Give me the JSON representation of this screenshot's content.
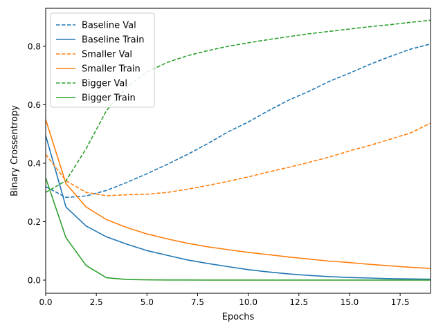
{
  "chart_data": {
    "type": "line",
    "xlabel": "Epochs",
    "ylabel": "Binary Crossentropy",
    "xlim": [
      0,
      19
    ],
    "ylim": [
      -0.045,
      0.93
    ],
    "xticks": [
      0,
      2.5,
      5,
      7.5,
      10,
      12.5,
      15,
      17.5
    ],
    "xtick_labels": [
      "0.0",
      "2.5",
      "5.0",
      "7.5",
      "10.0",
      "12.5",
      "15.0",
      "17.5"
    ],
    "yticks": [
      0,
      0.2,
      0.4,
      0.6,
      0.8
    ],
    "ytick_labels": [
      "0.0",
      "0.2",
      "0.4",
      "0.6",
      "0.8"
    ],
    "legend_position": "top-left",
    "grid": false,
    "x": [
      0,
      1,
      2,
      3,
      4,
      5,
      6,
      7,
      8,
      9,
      10,
      11,
      12,
      13,
      14,
      15,
      16,
      17,
      18,
      19
    ],
    "series": [
      {
        "name": "Baseline Val",
        "color": "#1f77b4",
        "style": "dashed",
        "values": [
          0.32,
          0.283,
          0.288,
          0.307,
          0.334,
          0.364,
          0.396,
          0.43,
          0.467,
          0.507,
          0.541,
          0.58,
          0.616,
          0.646,
          0.68,
          0.708,
          0.738,
          0.765,
          0.79,
          0.808
        ]
      },
      {
        "name": "Baseline Train",
        "color": "#1f77b4",
        "style": "solid",
        "values": [
          0.495,
          0.25,
          0.185,
          0.148,
          0.123,
          0.101,
          0.085,
          0.069,
          0.057,
          0.046,
          0.036,
          0.028,
          0.021,
          0.016,
          0.012,
          0.009,
          0.007,
          0.005,
          0.004,
          0.003
        ]
      },
      {
        "name": "Smaller Val",
        "color": "#ff7f0e",
        "style": "dashed",
        "values": [
          0.43,
          0.34,
          0.3,
          0.289,
          0.292,
          0.294,
          0.3,
          0.311,
          0.324,
          0.338,
          0.353,
          0.37,
          0.386,
          0.403,
          0.421,
          0.442,
          0.461,
          0.482,
          0.503,
          0.537
        ]
      },
      {
        "name": "Smaller Train",
        "color": "#ff7f0e",
        "style": "solid",
        "values": [
          0.55,
          0.33,
          0.25,
          0.207,
          0.18,
          0.158,
          0.141,
          0.126,
          0.114,
          0.104,
          0.095,
          0.087,
          0.079,
          0.072,
          0.065,
          0.06,
          0.054,
          0.049,
          0.044,
          0.04
        ]
      },
      {
        "name": "Bigger Val",
        "color": "#2ca02c",
        "style": "dashed",
        "values": [
          0.3,
          0.34,
          0.45,
          0.58,
          0.66,
          0.712,
          0.745,
          0.768,
          0.785,
          0.8,
          0.812,
          0.823,
          0.833,
          0.843,
          0.851,
          0.859,
          0.867,
          0.874,
          0.882,
          0.889
        ]
      },
      {
        "name": "Bigger Train",
        "color": "#2ca02c",
        "style": "solid",
        "values": [
          0.35,
          0.145,
          0.05,
          0.008,
          0.002,
          0.001,
          0.0005,
          0.0004,
          0.0003,
          0.0002,
          0.0002,
          0.0002,
          0.0001,
          0.0001,
          0.0001,
          0.0001,
          0.0001,
          0.0001,
          0.0001,
          0.0001
        ]
      }
    ]
  }
}
